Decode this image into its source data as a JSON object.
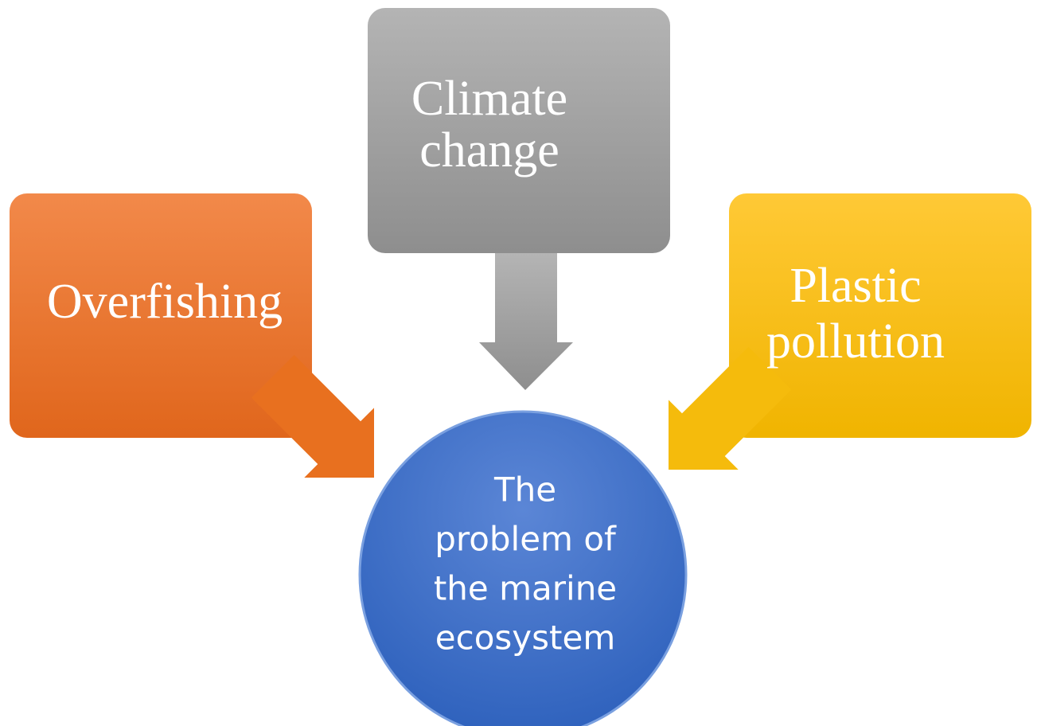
{
  "nodes": [
    {
      "lines": [
        "Climate",
        "change"
      ]
    },
    {
      "lines": [
        "Overfishing"
      ]
    },
    {
      "lines": [
        "Plastic",
        "pollution"
      ]
    },
    {
      "lines": [
        "The",
        "problem of",
        "the marine",
        "ecosystem"
      ]
    }
  ]
}
